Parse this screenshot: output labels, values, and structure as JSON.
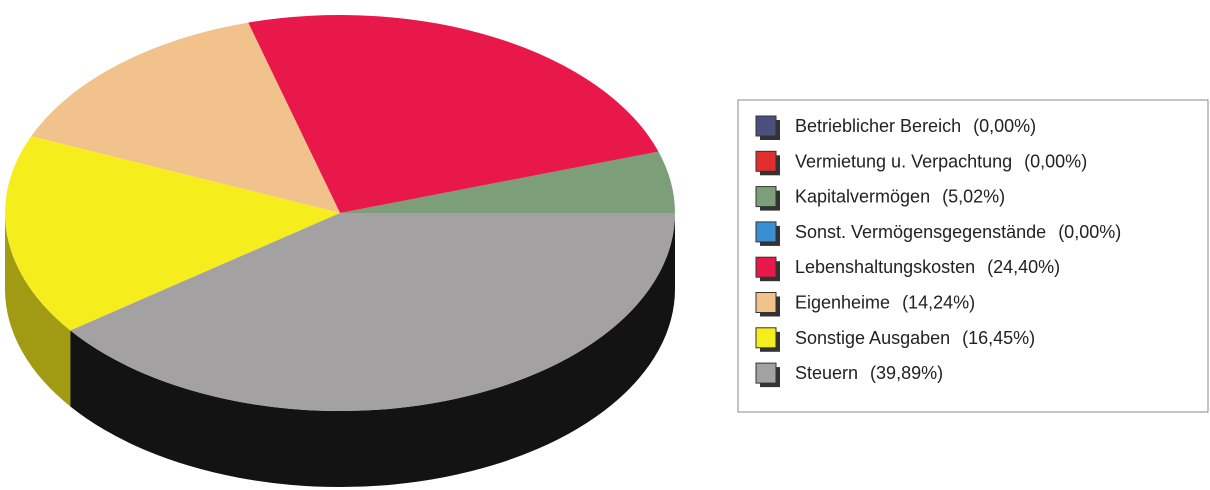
{
  "chart_data": {
    "type": "pie3d",
    "categories": [
      "Betrieblicher Bereich",
      "Vermietung u. Verpachtung",
      "Kapitalvermögen",
      "Sonst. Vermögensgegenstände",
      "Lebenshaltungskosten",
      "Eigenheime",
      "Sonstige Ausgaben",
      "Steuern"
    ],
    "values": [
      0,
      0,
      5.02,
      0,
      24.4,
      14.24,
      16.45,
      39.89
    ],
    "value_labels": [
      "(0,00%)",
      "(0,00%)",
      "(5,02%)",
      "(0,00%)",
      "(24,40%)",
      "(14,24%)",
      "(16,45%)",
      "(39,89%)"
    ],
    "colors": [
      "#4b4f7c",
      "#e02e2e",
      "#7c9f7a",
      "#3a8fd2",
      "#e8194a",
      "#f2c28c",
      "#f6ee1c",
      "#a3a1a1"
    ],
    "legend": "right"
  }
}
